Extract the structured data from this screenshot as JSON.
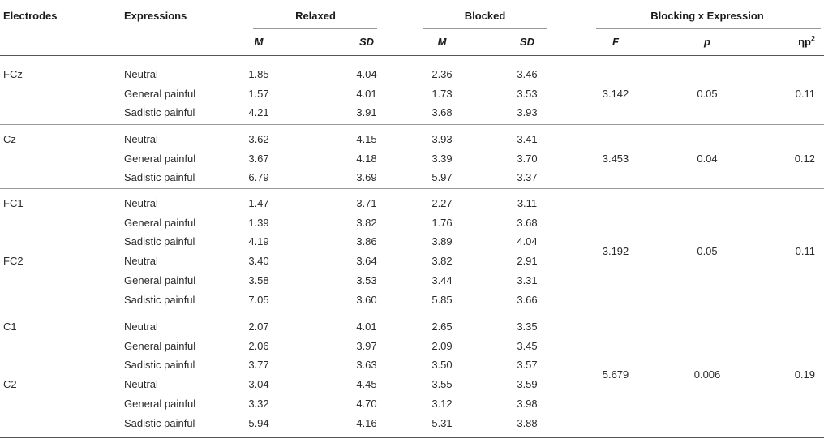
{
  "header": {
    "electrodes": "Electrodes",
    "expressions": "Expressions",
    "relaxed": "Relaxed",
    "blocked": "Blocked",
    "interaction": "Blocking x Expression",
    "m1": "M",
    "sd1": "SD",
    "m2": "M",
    "sd2": "SD",
    "f": "F",
    "p": "p",
    "eta_prefix": "ηp",
    "eta_sup": "2"
  },
  "groups": [
    {
      "rows": [
        {
          "electrode": "FCz",
          "expression": "Neutral",
          "rm": "1.85",
          "rsd": "4.04",
          "bm": "2.36",
          "bsd": "3.46"
        },
        {
          "electrode": "",
          "expression": "General painful",
          "rm": "1.57",
          "rsd": "4.01",
          "bm": "1.73",
          "bsd": "3.53"
        },
        {
          "electrode": "",
          "expression": "Sadistic painful",
          "rm": "4.21",
          "rsd": "3.91",
          "bm": "3.68",
          "bsd": "3.93"
        }
      ],
      "stats": {
        "f": "3.142",
        "p": "0.05",
        "eta": "0.11"
      }
    },
    {
      "rows": [
        {
          "electrode": "Cz",
          "expression": "Neutral",
          "rm": "3.62",
          "rsd": "4.15",
          "bm": "3.93",
          "bsd": "3.41"
        },
        {
          "electrode": "",
          "expression": "General painful",
          "rm": "3.67",
          "rsd": "4.18",
          "bm": "3.39",
          "bsd": "3.70"
        },
        {
          "electrode": "",
          "expression": "Sadistic painful",
          "rm": "6.79",
          "rsd": "3.69",
          "bm": "5.97",
          "bsd": "3.37"
        }
      ],
      "stats": {
        "f": "3.453",
        "p": "0.04",
        "eta": "0.12"
      }
    },
    {
      "rows": [
        {
          "electrode": "FC1",
          "expression": "Neutral",
          "rm": "1.47",
          "rsd": "3.71",
          "bm": "2.27",
          "bsd": "3.11"
        },
        {
          "electrode": "",
          "expression": "General painful",
          "rm": "1.39",
          "rsd": "3.82",
          "bm": "1.76",
          "bsd": "3.68"
        },
        {
          "electrode": "",
          "expression": "Sadistic painful",
          "rm": "4.19",
          "rsd": "3.86",
          "bm": "3.89",
          "bsd": "4.04"
        },
        {
          "electrode": "FC2",
          "expression": "Neutral",
          "rm": "3.40",
          "rsd": "3.64",
          "bm": "3.82",
          "bsd": "2.91"
        },
        {
          "electrode": "",
          "expression": "General painful",
          "rm": "3.58",
          "rsd": "3.53",
          "bm": "3.44",
          "bsd": "3.31"
        },
        {
          "electrode": "",
          "expression": "Sadistic painful",
          "rm": "7.05",
          "rsd": "3.60",
          "bm": "5.85",
          "bsd": "3.66"
        }
      ],
      "stats": {
        "f": "3.192",
        "p": "0.05",
        "eta": "0.11"
      }
    },
    {
      "rows": [
        {
          "electrode": "C1",
          "expression": "Neutral",
          "rm": "2.07",
          "rsd": "4.01",
          "bm": "2.65",
          "bsd": "3.35"
        },
        {
          "electrode": "",
          "expression": "General painful",
          "rm": "2.06",
          "rsd": "3.97",
          "bm": "2.09",
          "bsd": "3.45"
        },
        {
          "electrode": "",
          "expression": "Sadistic painful",
          "rm": "3.77",
          "rsd": "3.63",
          "bm": "3.50",
          "bsd": "3.57"
        },
        {
          "electrode": "C2",
          "expression": "Neutral",
          "rm": "3.04",
          "rsd": "4.45",
          "bm": "3.55",
          "bsd": "3.59"
        },
        {
          "electrode": "",
          "expression": "General painful",
          "rm": "3.32",
          "rsd": "4.70",
          "bm": "3.12",
          "bsd": "3.98"
        },
        {
          "electrode": "",
          "expression": "Sadistic painful",
          "rm": "5.94",
          "rsd": "4.16",
          "bm": "5.31",
          "bsd": "3.88"
        }
      ],
      "stats": {
        "f": "5.679",
        "p": "0.006",
        "eta": "0.19"
      }
    }
  ]
}
